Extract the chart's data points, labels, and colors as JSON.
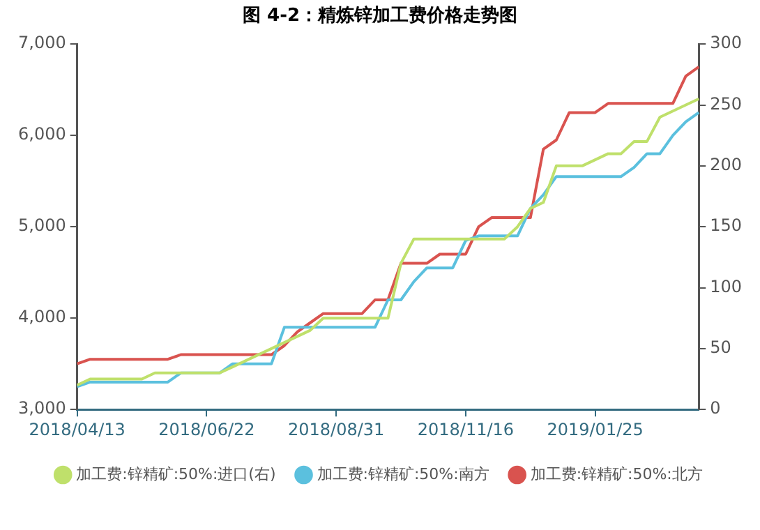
{
  "chart_data": {
    "type": "line",
    "title": "图 4-2：精炼锌加工费价格走势图",
    "categories": [
      "2018/04/13",
      null,
      null,
      null,
      null,
      null,
      null,
      null,
      null,
      null,
      "2018/06/22",
      null,
      null,
      null,
      null,
      null,
      null,
      null,
      null,
      null,
      "2018/08/31",
      null,
      null,
      null,
      null,
      null,
      null,
      null,
      null,
      null,
      "2018/11/16",
      null,
      null,
      null,
      null,
      null,
      null,
      null,
      null,
      null,
      "2019/01/25",
      null,
      null,
      null,
      null,
      null,
      null,
      null,
      null
    ],
    "series": [
      {
        "name": "加工费:锌精矿:50%:北方",
        "color": "#d9534f",
        "values": [
          3500,
          3550,
          3550,
          3550,
          3550,
          3550,
          3550,
          3550,
          3600,
          3600,
          3600,
          3600,
          3600,
          3600,
          3600,
          3600,
          3700,
          3850,
          3950,
          4050,
          4050,
          4050,
          4050,
          4200,
          4200,
          4600,
          4600,
          4600,
          4700,
          4700,
          4700,
          5000,
          5100,
          5100,
          5100,
          5100,
          5850,
          5950,
          6250,
          6250,
          6250,
          6350,
          6350,
          6350,
          6350,
          6350,
          6350,
          6650,
          6750
        ]
      },
      {
        "name": "加工费:锌精矿:50%:南方",
        "color": "#5bc0de",
        "values": [
          3250,
          3300,
          3300,
          3300,
          3300,
          3300,
          3300,
          3300,
          3400,
          3400,
          3400,
          3400,
          3500,
          3500,
          3500,
          3500,
          3900,
          3900,
          3900,
          3900,
          3900,
          3900,
          3900,
          3900,
          4200,
          4200,
          4400,
          4550,
          4550,
          4550,
          4850,
          4900,
          4900,
          4900,
          4900,
          5200,
          5350,
          5550,
          5550,
          5550,
          5550,
          5550,
          5550,
          5650,
          5800,
          5800,
          6000,
          6150,
          6250
        ]
      },
      {
        "name": "加工费:锌精矿:50%:进口(右)",
        "color": "#bfe06b",
        "axis": "y2",
        "values": [
          20,
          25,
          25,
          25,
          25,
          25,
          30,
          30,
          30,
          30,
          30,
          30,
          35,
          40,
          45,
          50,
          55,
          60,
          65,
          75,
          75,
          75,
          75,
          75,
          75,
          120,
          140,
          140,
          140,
          140,
          140,
          140,
          140,
          140,
          150,
          165,
          170,
          200,
          200,
          200,
          205,
          210,
          210,
          220,
          220,
          240,
          245,
          250,
          255
        ]
      }
    ],
    "ylim": [
      3000,
      7000
    ],
    "yticks": [
      {
        "value": 3000,
        "label": "3,000"
      },
      {
        "value": 4000,
        "label": "4,000"
      },
      {
        "value": 5000,
        "label": "5,000"
      },
      {
        "value": 6000,
        "label": "6,000"
      },
      {
        "value": 7000,
        "label": "7,000"
      }
    ],
    "y2lim": [
      0,
      300
    ],
    "y2ticks": [
      0,
      50,
      100,
      150,
      200,
      250,
      300
    ],
    "grid": false,
    "legend": "bottom",
    "marker": "none",
    "line_style": "solid"
  }
}
